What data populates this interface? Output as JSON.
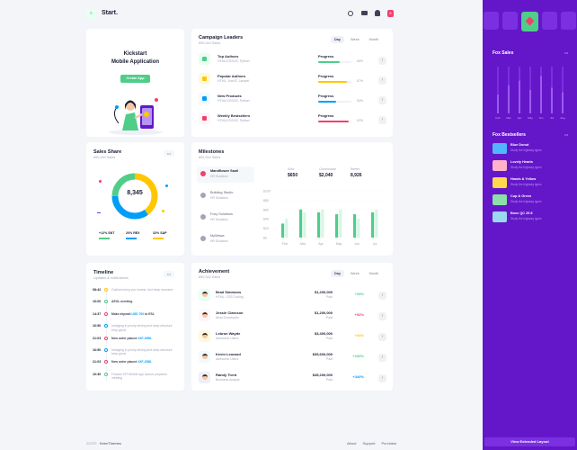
{
  "header": {
    "logo_text": "Start.",
    "menu_icon": "menu-icon",
    "badge_count": "5"
  },
  "kickstart": {
    "title": "Kickstart",
    "subtitle": "Mobile Application",
    "button": "Create App"
  },
  "campaign": {
    "title": "Campaign Leaders",
    "subtitle": "890,344 Sales",
    "tabs": [
      "Day",
      "Week",
      "Month"
    ],
    "rows": [
      {
        "name": "Top Authors",
        "sub": "HTML/CSS/JS, Python",
        "label": "Progress",
        "pct": "65%",
        "value": 0.65,
        "color": "#50cd89",
        "icon_bg": "#e8fff3"
      },
      {
        "name": "Popular Authors",
        "sub": "HTML, VueJS, Laravel",
        "label": "Progress",
        "pct": "87%",
        "value": 0.87,
        "color": "#ffc700",
        "icon_bg": "#fff8dd"
      },
      {
        "name": "New Products",
        "sub": "HTML/CSS/JS, Python",
        "label": "Progress",
        "pct": "53%",
        "value": 0.53,
        "color": "#009ef7",
        "icon_bg": "#f1faff"
      },
      {
        "name": "Weekly Bestsellers",
        "sub": "HTML/CSS/JS, Python",
        "label": "Progress",
        "pct": "92%",
        "value": 0.92,
        "color": "#f1416c",
        "icon_bg": "#fff5f8"
      }
    ]
  },
  "sales_share": {
    "title": "Sales Share",
    "subtitle": "890,344 Sales",
    "center": "8,345",
    "legend": [
      {
        "label": "+12% SNT",
        "color": "#50cd89"
      },
      {
        "label": "20% REX",
        "color": "#009ef7"
      },
      {
        "label": "32% SAP",
        "color": "#ffc700"
      }
    ],
    "segments": [
      {
        "value": 0.4,
        "color": "#ffc700"
      },
      {
        "value": 0.35,
        "color": "#009ef7"
      },
      {
        "value": 0.25,
        "color": "#50cd89"
      }
    ]
  },
  "milestones": {
    "title": "Milestones",
    "subtitle": "890,344 Sales",
    "items": [
      {
        "name": "Mandflower Saoli",
        "sub": "HR Solutions",
        "active": true
      },
      {
        "name": "Building Studio",
        "sub": "HR Solutions"
      },
      {
        "name": "Foxy Solutions",
        "sub": "HR Solutions"
      },
      {
        "name": "MyWawa",
        "sub": "HR Solutions"
      }
    ],
    "stats": [
      {
        "label": "Sold",
        "value": "$650"
      },
      {
        "label": "Commission",
        "value": "$2,040"
      },
      {
        "label": "Refers",
        "value": "8,926"
      }
    ],
    "y_ticks": [
      "$100",
      "$80",
      "$60",
      "$40",
      "$20",
      "$0"
    ],
    "x_ticks": [
      "Feb",
      "Mar",
      "Apr",
      "May",
      "Jun",
      "Jul"
    ]
  },
  "chart_data": {
    "type": "bar",
    "categories": [
      "Feb",
      "Mar",
      "Apr",
      "May",
      "Jun",
      "Jul"
    ],
    "series": [
      {
        "values": [
          30,
          60,
          54,
          50,
          50,
          54
        ]
      },
      {
        "values": [
          40,
          54,
          60,
          60,
          40,
          60
        ]
      }
    ],
    "ylim": [
      0,
      100
    ]
  },
  "timeline": {
    "title": "Timeline",
    "subtitle": "Updates & notifications",
    "items": [
      {
        "time": "08:42",
        "text": "Outlines keep you honest. And keep structure",
        "dot": "#ffc700",
        "muted": true
      },
      {
        "time": "10:00",
        "text": "AEOL meeting",
        "dot": "#50cd89",
        "muted": false
      },
      {
        "time": "14:37",
        "text": "Make deposit ",
        "amount": "USD 700",
        "tail": " to ESL",
        "dot": "#f1416c",
        "muted": false
      },
      {
        "time": "16:50",
        "text": "Indulging in poorly driving and keep structure keep great",
        "dot": "#009ef7",
        "muted": true
      },
      {
        "time": "21:03",
        "text": "New order placed ",
        "amount": "#XF-2356.",
        "dot": "#f1416c",
        "muted": false
      },
      {
        "time": "16:50",
        "text": "Indulging in poorly driving and keep structure keep great",
        "dot": "#009ef7",
        "muted": true
      },
      {
        "time": "21:03",
        "text": "New order placed ",
        "amount": "#XF-2356.",
        "dot": "#f1416c",
        "muted": false
      },
      {
        "time": "10:30",
        "text": "Finance KPI Mobile app launch preparion meeting",
        "dot": "#50cd89",
        "muted": true
      }
    ]
  },
  "achievement": {
    "title": "Achievement",
    "subtitle": "890,344 Sales",
    "tabs": [
      "Day",
      "Week",
      "Month"
    ],
    "rows": [
      {
        "name": "Brad Simmons",
        "sub": "HTML, CSS Coding",
        "amount": "$1,200,000",
        "status": "Paid",
        "pct": "+28%",
        "color": "#50cd89",
        "avatar_bg": "#e8fff3"
      },
      {
        "name": "Jessie Clarcson",
        "sub": "Most Successful",
        "amount": "$1,200,000",
        "status": "Paid",
        "pct": "+52%",
        "color": "#f1416c",
        "avatar_bg": "#fff5f8"
      },
      {
        "name": "Lebron Wayde",
        "sub": "Awesome Users",
        "amount": "$3,400,000",
        "status": "Paid",
        "pct": "+34%",
        "color": "#ffc700",
        "avatar_bg": "#fff8dd"
      },
      {
        "name": "Kevin Leonard",
        "sub": "Awesome Users",
        "amount": "$35,600,000",
        "status": "Paid",
        "pct": "+230%",
        "color": "#50cd89",
        "avatar_bg": "#f1faff"
      },
      {
        "name": "Randy Trent",
        "sub": "Business Analyst",
        "amount": "$45,200,000",
        "status": "Paid",
        "pct": "+340%",
        "color": "#009ef7",
        "avatar_bg": "#eef0f8"
      }
    ]
  },
  "footer": {
    "year": "2022©",
    "brand": "KeenThemes",
    "links": [
      "About",
      "Support",
      "Purchase"
    ]
  },
  "sidebar": {
    "fox_sales_title": "Fox Sales",
    "fox_chart_x": [
      "Feb",
      "Mar",
      "Apr",
      "May",
      "Jun",
      "Jul",
      "Aug"
    ],
    "fox_chart_values": [
      40,
      60,
      70,
      50,
      80,
      55,
      45
    ],
    "bestsellers_title": "Fox Bestsellers",
    "bestsellers": [
      {
        "name": "Blue Donut",
        "sub": "Study the highway types",
        "color": "#50b6ff"
      },
      {
        "name": "Lovely Hearts",
        "sub": "Study the highway types",
        "color": "#ffb3c9"
      },
      {
        "name": "Hands & Yellow",
        "sub": "Study the highway types",
        "color": "#ffd84d"
      },
      {
        "name": "Cup & Green",
        "sub": "Study the highway types",
        "color": "#8be0a8"
      },
      {
        "name": "Boxe QC 25 8",
        "sub": "Study the highway types",
        "color": "#9ad7f0"
      }
    ],
    "footer_button": "View Extended Layout"
  }
}
